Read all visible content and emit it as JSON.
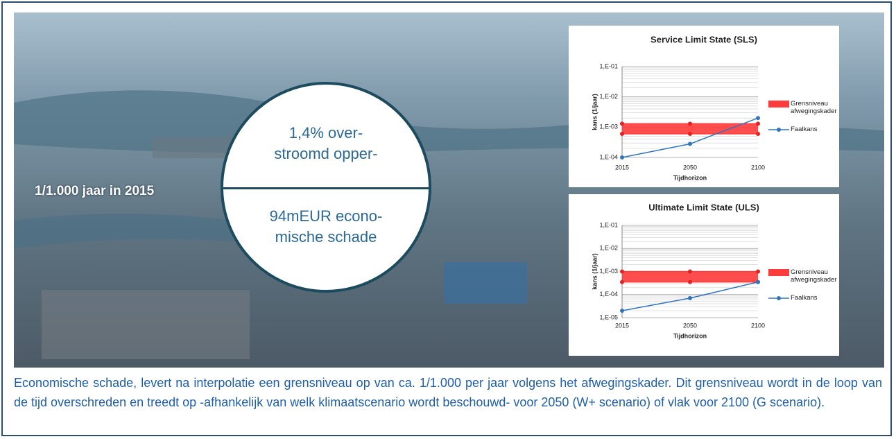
{
  "chart_data": [
    {
      "type": "line",
      "title": "Service Limit State (SLS)",
      "x_label": "Tijdhorizon",
      "y_label": "kans (1/jaar)",
      "log_scale": true,
      "minor_grid": true,
      "grid": true,
      "categories": [
        "2015",
        "2050",
        "2100"
      ],
      "ylim": [
        0.0001,
        0.1
      ],
      "yticks": [
        {
          "value": 0.0001,
          "label": "1,E-04"
        },
        {
          "value": 0.001,
          "label": "1,E-03"
        },
        {
          "value": 0.01,
          "label": "1,E-02"
        },
        {
          "value": 0.1,
          "label": "1,E-01"
        }
      ],
      "series": [
        {
          "name": "Grensniveau afwegingskader",
          "color": "#ff3b3b",
          "kind": "band",
          "values": [
            0.0013,
            0.0013,
            0.0013
          ],
          "lower": [
            0.0006,
            0.0006,
            0.0006
          ]
        },
        {
          "name": "Faalkans",
          "color": "#2f75c0",
          "kind": "line",
          "values": [
            0.0001,
            0.00028,
            0.002
          ]
        }
      ]
    },
    {
      "type": "line",
      "title": "Ultimate Limit State (ULS)",
      "x_label": "Tijdhorizon",
      "y_label": "kans (1/jaar)",
      "log_scale": true,
      "minor_grid": true,
      "grid": true,
      "categories": [
        "2015",
        "2050",
        "2100"
      ],
      "ylim": [
        1e-05,
        0.1
      ],
      "yticks": [
        {
          "value": 1e-05,
          "label": "1,E-05"
        },
        {
          "value": 0.0001,
          "label": "1,E-04"
        },
        {
          "value": 0.001,
          "label": "1,E-03"
        },
        {
          "value": 0.01,
          "label": "1,E-02"
        },
        {
          "value": 0.1,
          "label": "1,E-01"
        }
      ],
      "series": [
        {
          "name": "Grensniveau afwegingskader",
          "color": "#ff3b3b",
          "kind": "band",
          "values": [
            0.001,
            0.001,
            0.001
          ],
          "lower": [
            0.00035,
            0.00035,
            0.00035
          ]
        },
        {
          "name": "Faalkans",
          "color": "#2f75c0",
          "kind": "line",
          "values": [
            2e-05,
            7e-05,
            0.00035
          ]
        }
      ]
    }
  ],
  "label": "1/1.000 jaar in 2015",
  "circle": {
    "top": [
      "1,4% over-",
      "stroomd opper-"
    ],
    "bottom": [
      "94mEUR econo-",
      "mische schade"
    ]
  },
  "caption": "Economische schade, levert na interpolatie een grensniveau op van ca. 1/1.000 per jaar volgens het afwegingskader. Dit grensniveau wordt in de loop van de tijd overschreden en treedt op -afhankelijk van welk klimaatscenario wordt beschouwd- voor 2050 (W+ scenario) of vlak voor 2100 (G scenario)."
}
